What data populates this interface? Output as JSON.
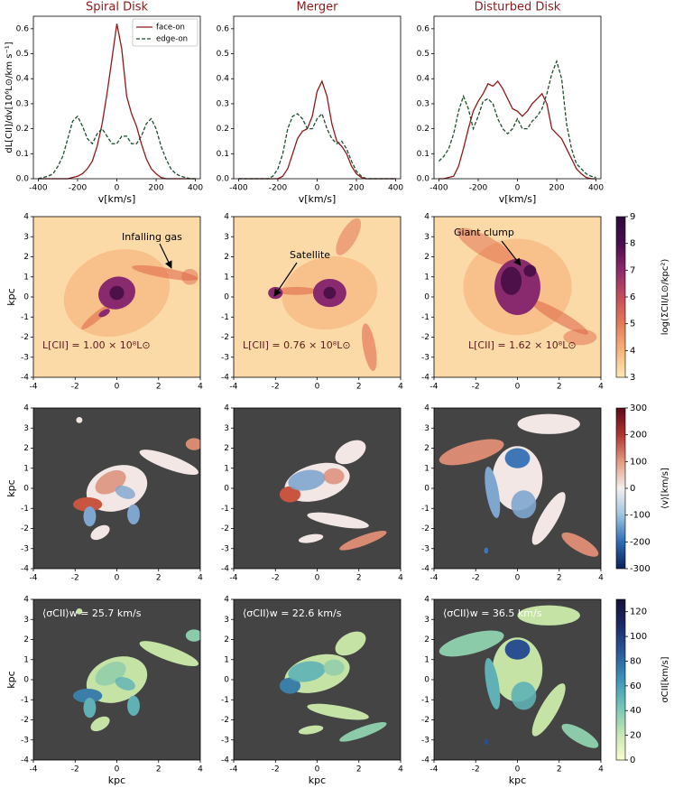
{
  "chart_data": [
    {
      "type": "line",
      "title": "Spiral Disk",
      "xlabel": "v[km/s]",
      "ylabel": "dL[CII]/dv[10⁶L⊙/km s⁻¹]",
      "legend": "upper right",
      "xlim": [
        -425,
        425
      ],
      "ylim": [
        0,
        0.65
      ],
      "xticks": [
        -400,
        -200,
        0,
        200,
        400
      ],
      "yticks": [
        {
          "value": 0,
          "label": "0.0"
        },
        0.1,
        0.2,
        0.3,
        0.4,
        0.5,
        0.6
      ],
      "x": [
        -400,
        -375,
        -350,
        -325,
        -300,
        -275,
        -250,
        -225,
        -200,
        -175,
        -150,
        -125,
        -100,
        -75,
        -50,
        -25,
        0,
        25,
        50,
        75,
        100,
        125,
        150,
        175,
        200,
        225,
        250,
        275,
        300,
        325,
        350,
        375,
        400
      ],
      "series": [
        {
          "name": "face-on",
          "color": "#8b1a1a",
          "dash": false,
          "values": [
            0,
            0,
            0,
            0,
            0,
            0,
            0,
            0.005,
            0.01,
            0.02,
            0.04,
            0.07,
            0.13,
            0.22,
            0.34,
            0.48,
            0.62,
            0.52,
            0.33,
            0.26,
            0.21,
            0.14,
            0.08,
            0.04,
            0.02,
            0.005,
            0,
            0,
            0,
            0,
            0,
            0,
            0
          ]
        },
        {
          "name": "edge-on",
          "color": "#1f4d2b",
          "dash": true,
          "values": [
            0,
            0.005,
            0.01,
            0.02,
            0.05,
            0.09,
            0.16,
            0.23,
            0.25,
            0.21,
            0.16,
            0.14,
            0.18,
            0.2,
            0.17,
            0.14,
            0.14,
            0.17,
            0.17,
            0.14,
            0.14,
            0.17,
            0.22,
            0.24,
            0.2,
            0.13,
            0.08,
            0.04,
            0.02,
            0.01,
            0.005,
            0,
            0
          ]
        }
      ]
    },
    {
      "type": "line",
      "title": "Merger",
      "xlabel": "v[km/s]",
      "xlim": [
        -425,
        425
      ],
      "ylim": [
        0,
        0.65
      ],
      "xticks": [
        -400,
        -200,
        0,
        200,
        400
      ],
      "yticks": [
        {
          "value": 0,
          "label": "0.0"
        },
        0.1,
        0.2,
        0.3,
        0.4,
        0.5,
        0.6
      ],
      "x": [
        -400,
        -375,
        -350,
        -325,
        -300,
        -275,
        -250,
        -225,
        -200,
        -175,
        -150,
        -125,
        -100,
        -75,
        -50,
        -25,
        0,
        25,
        50,
        75,
        100,
        125,
        150,
        175,
        200,
        225,
        250,
        275,
        300,
        325,
        350,
        375,
        400
      ],
      "series": [
        {
          "name": "face-on",
          "color": "#8b1a1a",
          "dash": false,
          "values": [
            0,
            0,
            0,
            0,
            0,
            0,
            0,
            0,
            0,
            0.01,
            0.04,
            0.1,
            0.16,
            0.19,
            0.2,
            0.25,
            0.35,
            0.39,
            0.33,
            0.22,
            0.15,
            0.13,
            0.1,
            0.05,
            0.02,
            0.005,
            0,
            0,
            0,
            0,
            0,
            0,
            0
          ]
        },
        {
          "name": "edge-on",
          "color": "#1f4d2b",
          "dash": true,
          "values": [
            0,
            0,
            0,
            0,
            0,
            0,
            0,
            0.01,
            0.04,
            0.1,
            0.2,
            0.25,
            0.26,
            0.24,
            0.2,
            0.2,
            0.24,
            0.26,
            0.2,
            0.16,
            0.14,
            0.15,
            0.12,
            0.07,
            0.03,
            0.01,
            0,
            0,
            0,
            0,
            0,
            0,
            0
          ]
        }
      ]
    },
    {
      "type": "line",
      "title": "Disturbed Disk",
      "xlabel": "v[km/s]",
      "xlim": [
        -425,
        425
      ],
      "ylim": [
        0,
        0.65
      ],
      "xticks": [
        -400,
        -200,
        0,
        200,
        400
      ],
      "yticks": [
        {
          "value": 0,
          "label": "0.0"
        },
        0.1,
        0.2,
        0.3,
        0.4,
        0.5,
        0.6
      ],
      "x": [
        -400,
        -375,
        -350,
        -325,
        -300,
        -275,
        -250,
        -225,
        -200,
        -175,
        -150,
        -125,
        -100,
        -75,
        -50,
        -25,
        0,
        25,
        50,
        75,
        100,
        125,
        150,
        175,
        200,
        225,
        250,
        275,
        300,
        325,
        350,
        375,
        400
      ],
      "series": [
        {
          "name": "face-on",
          "color": "#8b1a1a",
          "dash": false,
          "values": [
            0,
            0,
            0.005,
            0.01,
            0.05,
            0.12,
            0.2,
            0.27,
            0.31,
            0.34,
            0.38,
            0.37,
            0.39,
            0.36,
            0.32,
            0.28,
            0.27,
            0.25,
            0.27,
            0.3,
            0.32,
            0.34,
            0.3,
            0.2,
            0.18,
            0.16,
            0.12,
            0.08,
            0.04,
            0.02,
            0.005,
            0,
            0
          ]
        },
        {
          "name": "edge-on",
          "color": "#1f4d2b",
          "dash": true,
          "values": [
            0.07,
            0.09,
            0.12,
            0.18,
            0.27,
            0.33,
            0.28,
            0.2,
            0.25,
            0.31,
            0.32,
            0.3,
            0.24,
            0.2,
            0.18,
            0.2,
            0.24,
            0.2,
            0.2,
            0.23,
            0.25,
            0.28,
            0.34,
            0.42,
            0.47,
            0.4,
            0.22,
            0.12,
            0.06,
            0.04,
            0.02,
            0.01,
            0.005
          ]
        }
      ]
    }
  ],
  "maps": {
    "xlabel": "kpc",
    "ylabel": "kpc",
    "xlim": [
      -4,
      4
    ],
    "ylim": [
      -4,
      4
    ],
    "xticks": [
      -4,
      -2,
      0,
      2,
      4
    ],
    "yticks": [
      -4,
      -3,
      -2,
      -1,
      0,
      1,
      2,
      3,
      4
    ],
    "rows": [
      {
        "background": "#fcdaa8",
        "colorbar": {
          "label": "log(ΣCII/L⊙/kpc²)",
          "lim": [
            3,
            9
          ],
          "ticks": [
            3,
            4,
            5,
            6,
            7,
            8,
            9
          ],
          "colors": [
            "#fde8b4",
            "#f7b479",
            "#e67a59",
            "#c44d5b",
            "#8c2a6a",
            "#4a0c4e",
            "#2d0a3c"
          ]
        },
        "panels": [
          {
            "annotations": [
              "Infalling gas",
              "L[CII] = 1.00 × 10⁸L⊙"
            ]
          },
          {
            "annotations": [
              "Satellite",
              "L[CII] = 0.76 × 10⁸L⊙"
            ]
          },
          {
            "annotations": [
              "Giant clump",
              "L[CII] = 1.62 × 10⁸L⊙"
            ]
          }
        ]
      },
      {
        "background": "#444444",
        "colorbar": {
          "label": "⟨v⟩[km/s]",
          "lim": [
            -300,
            300
          ],
          "ticks": [
            -300,
            -200,
            -100,
            0,
            100,
            200,
            300
          ],
          "colors": [
            "#0b1f5a",
            "#2e6db4",
            "#9cc4e0",
            "#f4f0ee",
            "#e49a80",
            "#b3322f",
            "#5c0a1a"
          ]
        },
        "panels": [
          {
            "annotations": []
          },
          {
            "annotations": []
          },
          {
            "annotations": []
          }
        ]
      },
      {
        "background": "#444444",
        "colorbar": {
          "label": "σCII[km/s]",
          "lim": [
            0,
            130
          ],
          "ticks": [
            0,
            20,
            40,
            60,
            80,
            100,
            120
          ],
          "colors": [
            "#fbfccf",
            "#c3e6b4",
            "#73c4b7",
            "#3a95b8",
            "#2a5a9c",
            "#1b2a6a",
            "#161236"
          ]
        },
        "panels": [
          {
            "annotations": [
              "⟨σCII⟩w = 25.7 km/s"
            ]
          },
          {
            "annotations": [
              "⟨σCII⟩w = 22.6 km/s"
            ]
          },
          {
            "annotations": [
              "⟨σCII⟩w = 36.5 km/s"
            ]
          }
        ]
      }
    ]
  }
}
